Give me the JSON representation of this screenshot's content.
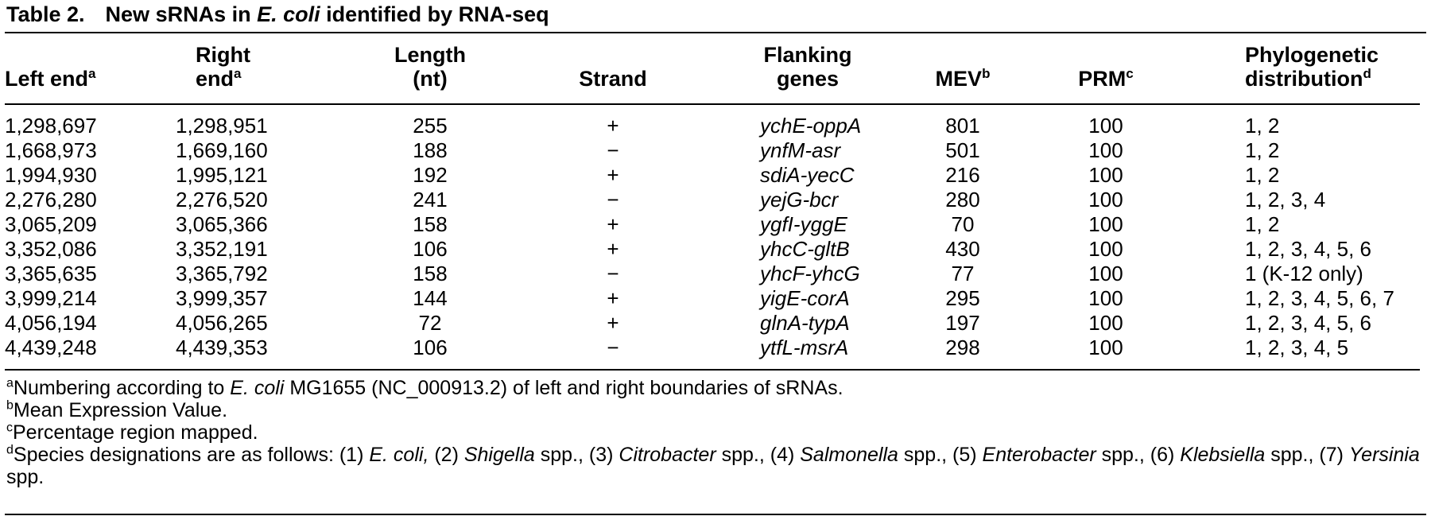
{
  "colors": {
    "text": "#000000",
    "background": "#ffffff",
    "rule": "#000000"
  },
  "caption": {
    "label": "Table 2.",
    "title_segments": [
      {
        "t": "New sRNAs in ",
        "i": false
      },
      {
        "t": "E. coli",
        "i": true
      },
      {
        "t": " identified by RNA-seq",
        "i": false
      }
    ]
  },
  "table": {
    "columns": [
      {
        "id": "left_end",
        "lines": [
          "Left end"
        ],
        "sup": "a"
      },
      {
        "id": "right_end",
        "lines": [
          "Right",
          "end"
        ],
        "sup": "a"
      },
      {
        "id": "length",
        "lines": [
          "Length",
          "(nt)"
        ],
        "sup": ""
      },
      {
        "id": "strand",
        "lines": [
          "Strand"
        ],
        "sup": ""
      },
      {
        "id": "flanking",
        "lines": [
          "Flanking",
          "genes"
        ],
        "sup": ""
      },
      {
        "id": "mev",
        "lines": [
          "MEV"
        ],
        "sup": "b"
      },
      {
        "id": "prm",
        "lines": [
          "PRM"
        ],
        "sup": "c"
      },
      {
        "id": "phylo",
        "lines": [
          "Phylogenetic",
          "distribution"
        ],
        "sup": "d"
      }
    ],
    "rows": [
      {
        "left_end": "1,298,697",
        "right_end": "1,298,951",
        "length": "255",
        "strand": "+",
        "flanking": "ychE-oppA",
        "mev": "801",
        "prm": "100",
        "phylo": "1, 2"
      },
      {
        "left_end": "1,668,973",
        "right_end": "1,669,160",
        "length": "188",
        "strand": "−",
        "flanking": "ynfM-asr",
        "mev": "501",
        "prm": "100",
        "phylo": "1, 2"
      },
      {
        "left_end": "1,994,930",
        "right_end": "1,995,121",
        "length": "192",
        "strand": "+",
        "flanking": "sdiA-yecC",
        "mev": "216",
        "prm": "100",
        "phylo": "1, 2"
      },
      {
        "left_end": "2,276,280",
        "right_end": "2,276,520",
        "length": "241",
        "strand": "−",
        "flanking": "yejG-bcr",
        "mev": "280",
        "prm": "100",
        "phylo": "1, 2, 3, 4"
      },
      {
        "left_end": "3,065,209",
        "right_end": "3,065,366",
        "length": "158",
        "strand": "+",
        "flanking": "ygfI-yggE",
        "mev": "70",
        "prm": "100",
        "phylo": "1, 2"
      },
      {
        "left_end": "3,352,086",
        "right_end": "3,352,191",
        "length": "106",
        "strand": "+",
        "flanking": "yhcC-gltB",
        "mev": "430",
        "prm": "100",
        "phylo": "1, 2, 3, 4, 5, 6"
      },
      {
        "left_end": "3,365,635",
        "right_end": "3,365,792",
        "length": "158",
        "strand": "−",
        "flanking": "yhcF-yhcG",
        "mev": "77",
        "prm": "100",
        "phylo": "1 (K-12 only)"
      },
      {
        "left_end": "3,999,214",
        "right_end": "3,999,357",
        "length": "144",
        "strand": "+",
        "flanking": "yigE-corA",
        "mev": "295",
        "prm": "100",
        "phylo": "1, 2, 3, 4, 5, 6, 7"
      },
      {
        "left_end": "4,056,194",
        "right_end": "4,056,265",
        "length": "72",
        "strand": "+",
        "flanking": "glnA-typA",
        "mev": "197",
        "prm": "100",
        "phylo": "1, 2, 3, 4, 5, 6"
      },
      {
        "left_end": "4,439,248",
        "right_end": "4,439,353",
        "length": "106",
        "strand": "−",
        "flanking": "ytfL-msrA",
        "mev": "298",
        "prm": "100",
        "phylo": "1, 2, 3, 4, 5"
      }
    ]
  },
  "footnotes": [
    {
      "sup": "a",
      "segments": [
        {
          "t": "Numbering according to ",
          "i": false
        },
        {
          "t": "E. coli",
          "i": true
        },
        {
          "t": " MG1655 (NC_000913.2) of left and right boundaries of sRNAs.",
          "i": false
        }
      ]
    },
    {
      "sup": "b",
      "segments": [
        {
          "t": "Mean Expression Value.",
          "i": false
        }
      ]
    },
    {
      "sup": "c",
      "segments": [
        {
          "t": "Percentage region mapped.",
          "i": false
        }
      ]
    },
    {
      "sup": "d",
      "segments": [
        {
          "t": "Species designations are as follows: (1) ",
          "i": false
        },
        {
          "t": "E. coli,",
          "i": true
        },
        {
          "t": " (2) ",
          "i": false
        },
        {
          "t": "Shigella",
          "i": true
        },
        {
          "t": " spp., (3) ",
          "i": false
        },
        {
          "t": "Citrobacter",
          "i": true
        },
        {
          "t": " spp., (4) ",
          "i": false
        },
        {
          "t": "Salmonella",
          "i": true
        },
        {
          "t": " spp., (5) ",
          "i": false
        },
        {
          "t": "Enterobacter",
          "i": true
        },
        {
          "t": " spp., (6) ",
          "i": false
        },
        {
          "t": "Klebsiella",
          "i": true
        },
        {
          "t": " spp., (7) ",
          "i": false
        },
        {
          "t": "Yersinia",
          "i": true
        },
        {
          "t": " spp.",
          "i": false
        }
      ]
    }
  ]
}
